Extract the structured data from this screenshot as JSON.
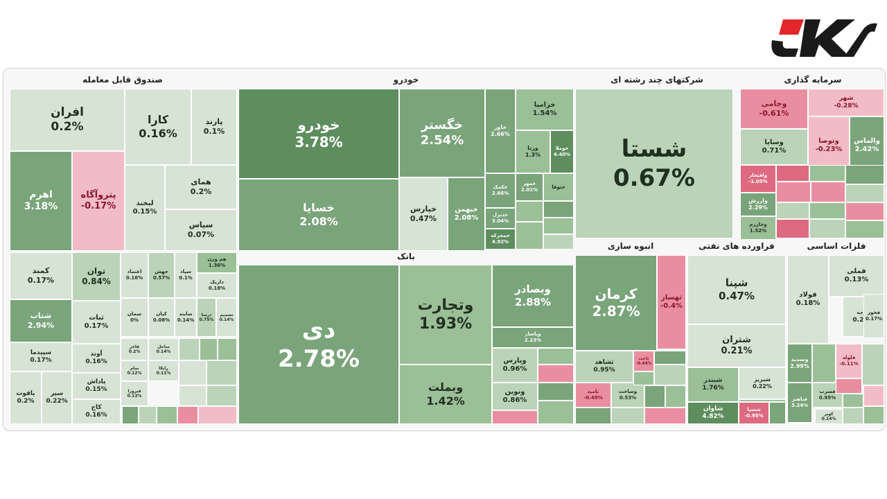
{
  "colors": {
    "pos4": "#5e8d5e",
    "pos3": "#7aa47a",
    "pos2": "#9bbf97",
    "pos1": "#bbd3b8",
    "pos0": "#d6e3d5",
    "neg1": "#f2bcc6",
    "neg2": "#e98ea0",
    "neg3": "#dd6a80"
  },
  "sectors": [
    {
      "label": "صندوق قابل معامله"
    },
    {
      "label": "خودرو"
    },
    {
      "label": "شرکتهای چند رشته ای"
    },
    {
      "label": "سرمایه گذاری"
    },
    {
      "label": "بانک"
    },
    {
      "label": "انبوه سازی"
    },
    {
      "label": "فراورده های نفتی"
    },
    {
      "label": "فلزات اساسی"
    }
  ],
  "chart_data": {
    "type": "treemap",
    "items": [
      {
        "name": "افران",
        "change": "0.2%",
        "value": 0.2
      },
      {
        "name": "کارا",
        "change": "0.16%",
        "value": 0.16
      },
      {
        "name": "پارند",
        "change": "0.1%",
        "value": 0.1
      },
      {
        "name": "اهرم",
        "change": "3.18%",
        "value": 3.18
      },
      {
        "name": "پتروآگاه",
        "change": "-0.17%",
        "value": -0.17
      },
      {
        "name": "لبخند",
        "change": "0.15%",
        "value": 0.15
      },
      {
        "name": "همای",
        "change": "0.2%",
        "value": 0.2
      },
      {
        "name": "سپاس",
        "change": "0.07%",
        "value": 0.07
      },
      {
        "name": "کمند",
        "change": "0.17%",
        "value": 0.17
      },
      {
        "name": "توان",
        "change": "0.84%",
        "value": 0.84
      },
      {
        "name": "شتاب",
        "change": "2.94%",
        "value": 2.94
      },
      {
        "name": "ثبات",
        "change": "0.17%",
        "value": 0.17
      },
      {
        "name": "سپیدما",
        "change": "0.17%",
        "value": 0.17
      },
      {
        "name": "آوند",
        "change": "0.16%",
        "value": 0.16
      },
      {
        "name": "یاقوت",
        "change": "0.2%",
        "value": 0.2
      },
      {
        "name": "سپر",
        "change": "0.22%",
        "value": 0.22
      },
      {
        "name": "پاداش",
        "change": "0.15%",
        "value": 0.15
      },
      {
        "name": "کاج",
        "change": "0.16%",
        "value": 0.16
      },
      {
        "name": "اعتماد",
        "change": "0.16%",
        "value": 0.16
      },
      {
        "name": "جهش",
        "change": "0.57%",
        "value": 0.57
      },
      {
        "name": "سپاد",
        "change": "0.1%",
        "value": 0.1
      },
      {
        "name": "هم وزن",
        "change": "1.36%",
        "value": 1.36
      },
      {
        "name": "داریک",
        "change": "0.18%",
        "value": 0.18
      },
      {
        "name": "سمان",
        "change": "0%",
        "value": 0
      },
      {
        "name": "کیان",
        "change": "0.08%",
        "value": 0.08
      },
      {
        "name": "صایند",
        "change": "0.14%",
        "value": 0.14
      },
      {
        "name": "درسا",
        "change": "0.75%",
        "value": 0.75
      },
      {
        "name": "تصمیم",
        "change": "0.14%",
        "value": 0.14
      },
      {
        "name": "فاخر",
        "change": "0.2%",
        "value": 0.2
      },
      {
        "name": "ساحل",
        "change": "0.14%",
        "value": 0.14
      },
      {
        "name": "سام",
        "change": "0.12%",
        "value": 0.12
      },
      {
        "name": "رابکا",
        "change": "0.11%",
        "value": 0.11
      },
      {
        "name": "فیروزا",
        "change": "0.13%",
        "value": 0.13
      },
      {
        "name": "خودرو",
        "change": "3.78%",
        "value": 3.78
      },
      {
        "name": "خساپا",
        "change": "2.08%",
        "value": 2.08
      },
      {
        "name": "خگستر",
        "change": "2.54%",
        "value": 2.54
      },
      {
        "name": "خپارس",
        "change": "0.47%",
        "value": 0.47
      },
      {
        "name": "خبهمن",
        "change": "2.08%",
        "value": 2.08
      },
      {
        "name": "خاور",
        "change": "2.66%",
        "value": 2.66
      },
      {
        "name": "خزامیا",
        "change": "1.54%",
        "value": 1.54
      },
      {
        "name": "ورنا",
        "change": "1.3%",
        "value": 1.3
      },
      {
        "name": "خوملا",
        "change": "4.40%",
        "value": 4.4
      },
      {
        "name": "خکمک",
        "change": "2.66%",
        "value": 2.66
      },
      {
        "name": "خمهر",
        "change": "2.01%",
        "value": 2.01
      },
      {
        "name": "ختوقا",
        "change": "",
        "value": null
      },
      {
        "name": "خدیزل",
        "change": "3.04%",
        "value": 3.04
      },
      {
        "name": "خمحرکه",
        "change": "4.92%",
        "value": 4.92
      },
      {
        "name": "شستا",
        "change": "0.67%",
        "value": 0.67
      },
      {
        "name": "وجامی",
        "change": "-0.61%",
        "value": -0.61
      },
      {
        "name": "شهر",
        "change": "-0.28%",
        "value": -0.28
      },
      {
        "name": "وسایا",
        "change": "0.71%",
        "value": 0.71
      },
      {
        "name": "وتوصا",
        "change": "-0.23%",
        "value": -0.23
      },
      {
        "name": "والماس",
        "change": "2.42%",
        "value": 2.42
      },
      {
        "name": "وافتخار",
        "change": "-1.05%",
        "value": -1.05
      },
      {
        "name": "وارزش",
        "change": "2.29%",
        "value": 2.29
      },
      {
        "name": "وخارزم",
        "change": "1.52%",
        "value": 1.52
      },
      {
        "name": "دی",
        "change": "2.78%",
        "value": 2.78
      },
      {
        "name": "وتجارت",
        "change": "1.93%",
        "value": 1.93
      },
      {
        "name": "وبملت",
        "change": "1.42%",
        "value": 1.42
      },
      {
        "name": "وبصادر",
        "change": "2.88%",
        "value": 2.88
      },
      {
        "name": "وپاسار",
        "change": "2.23%",
        "value": 2.23
      },
      {
        "name": "وپارس",
        "change": "0.96%",
        "value": 0.96
      },
      {
        "name": "ونوین",
        "change": "0.86%",
        "value": 0.86
      },
      {
        "name": "کرمان",
        "change": "2.87%",
        "value": 2.87
      },
      {
        "name": "ثهساز",
        "change": "-0.4%",
        "value": -0.4
      },
      {
        "name": "ثشاهد",
        "change": "0.95%",
        "value": 0.95
      },
      {
        "name": "ثاخت",
        "change": "-0.44%",
        "value": -0.44
      },
      {
        "name": "ثامید",
        "change": "-0.49%",
        "value": -0.49
      },
      {
        "name": "وساخت",
        "change": "0.53%",
        "value": 0.53
      },
      {
        "name": "شپنا",
        "change": "0.47%",
        "value": 0.47
      },
      {
        "name": "شتران",
        "change": "0.21%",
        "value": 0.21
      },
      {
        "name": "شبندر",
        "change": "1.76%",
        "value": 1.76
      },
      {
        "name": "شبریز",
        "change": "0.22%",
        "value": 0.22
      },
      {
        "name": "شاوان",
        "change": "4.82%",
        "value": 4.82
      },
      {
        "name": "شسپا",
        "change": "-0.95%",
        "value": -0.95
      },
      {
        "name": "فملی",
        "change": "0.13%",
        "value": 0.13
      },
      {
        "name": "فولاد",
        "change": "0.18%",
        "value": 0.18
      },
      {
        "name": "ذوب",
        "change": "0.24%",
        "value": 0.24
      },
      {
        "name": "فخوز",
        "change": "0.17%",
        "value": 0.17
      },
      {
        "name": "وسدید",
        "change": "2.99%",
        "value": 2.99
      },
      {
        "name": "فلوله",
        "change": "-0.11%",
        "value": -0.11
      },
      {
        "name": "فسرب",
        "change": "0.95%",
        "value": 0.95
      },
      {
        "name": "فباهنر",
        "change": "3.24%",
        "value": 3.24
      },
      {
        "name": "کویر",
        "change": "0.14%",
        "value": 0.14
      }
    ]
  }
}
